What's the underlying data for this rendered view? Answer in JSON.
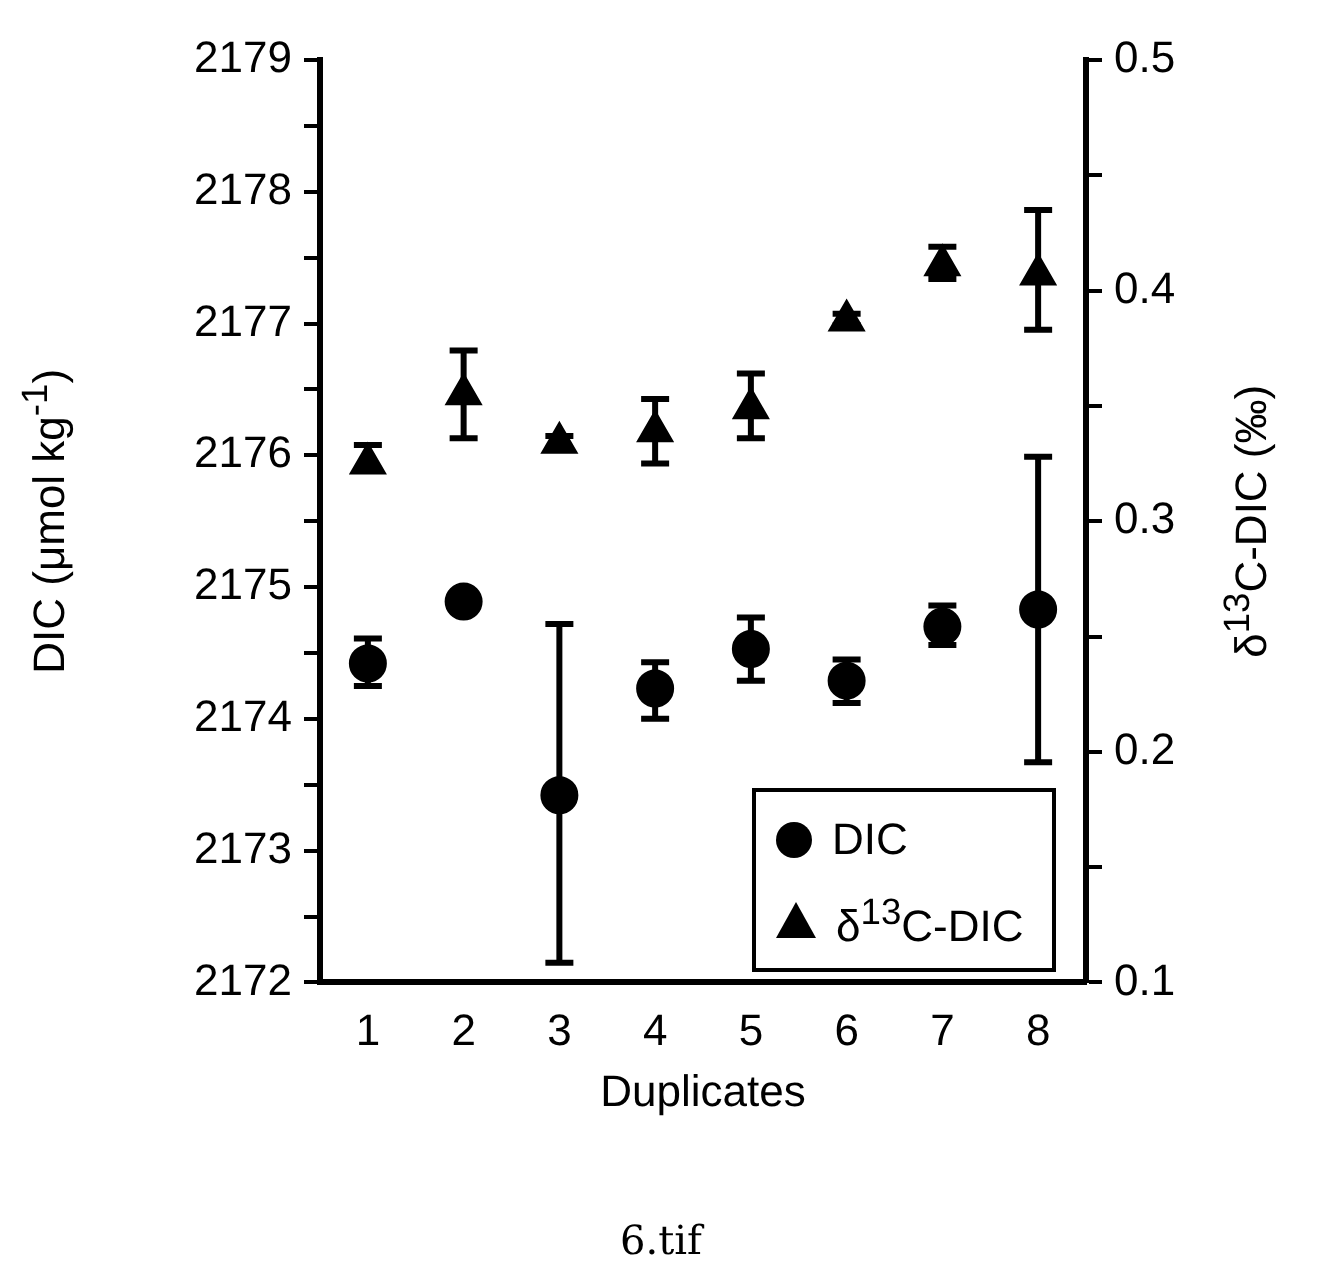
{
  "chart_data": {
    "type": "scatter",
    "xlabel": "Duplicates",
    "ylabel": "DIC (μmol kg$^{-1}$)",
    "y2label": "δ$^{13}$C-DIC (‰)",
    "categories": [
      "1",
      "2",
      "3",
      "4",
      "5",
      "6",
      "7",
      "8"
    ],
    "series": [
      {
        "name": "DIC",
        "color": "#000000",
        "marker": "circle",
        "values": [
          2174.42,
          2174.89,
          2173.42,
          2174.23,
          2174.53,
          2174.29,
          2174.7,
          2174.83
        ],
        "errors": [
          [
            2174.25,
            2174.61
          ],
          null,
          [
            2172.15,
            2174.72
          ],
          [
            2174.0,
            2174.43
          ],
          [
            2174.29,
            2174.77
          ],
          [
            2174.12,
            2174.45
          ],
          [
            2174.56,
            2174.86
          ],
          [
            2173.67,
            2175.99
          ]
        ]
      },
      {
        "name": "δ$^{13}$C-DIC",
        "color": "#000000",
        "marker": "triangle",
        "axis": "y2",
        "values": [
          0.325,
          0.355,
          0.334,
          0.339,
          0.349,
          0.387,
          0.411,
          0.407
        ],
        "errors": [
          [
            0.322,
            0.333
          ],
          [
            0.336,
            0.374
          ],
          [
            0.331,
            0.337
          ],
          [
            0.325,
            0.353
          ],
          [
            0.336,
            0.364
          ],
          [
            0.385,
            0.39
          ],
          [
            0.405,
            0.419
          ],
          [
            0.383,
            0.435
          ]
        ]
      }
    ],
    "ylim": [
      2172,
      2179
    ],
    "yticks": [
      2172,
      {
        "value": 2172.5,
        "label": null
      },
      2173,
      {
        "value": 2173.5,
        "label": null
      },
      2174,
      {
        "value": 2174.5,
        "label": null
      },
      2175,
      {
        "value": 2175.5,
        "label": null
      },
      2176,
      {
        "value": 2176.5,
        "label": null
      },
      2177,
      {
        "value": 2177.5,
        "label": null
      },
      2178,
      {
        "value": 2178.5,
        "label": null
      },
      2179
    ],
    "y2lim": [
      0.1,
      0.5
    ],
    "y2ticks": [
      0.1,
      {
        "value": 0.15,
        "label": null
      },
      0.2,
      {
        "value": 0.25,
        "label": null
      },
      0.3,
      {
        "value": 0.35,
        "label": null
      },
      0.4,
      {
        "value": 0.45,
        "label": null
      },
      0.5
    ],
    "grid": false,
    "legend": "bottom right",
    "annotations": [
      "6.tif"
    ]
  }
}
